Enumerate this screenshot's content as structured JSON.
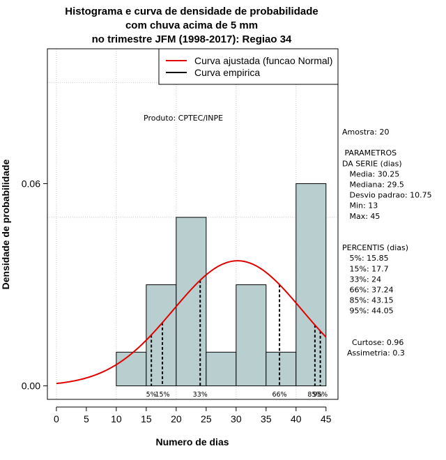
{
  "chart_data": {
    "type": "bar",
    "title": [
      "Histograma e curva de densidade de probabilidade",
      "com chuva acima de 5 mm",
      "no trimestre JFM (1998-2017): Regiao 34"
    ],
    "xlabel": "Numero de dias",
    "ylabel": "Densidade de probabilidade",
    "xlim": [
      -1.5,
      47
    ],
    "ylim": [
      -0.004,
      0.1
    ],
    "x_ticks": [
      "0",
      "5",
      "10",
      "15",
      "20",
      "25",
      "30",
      "35",
      "40",
      "45"
    ],
    "y_ticks": [
      "0.00",
      "0.06"
    ],
    "bins": [
      {
        "from": 10,
        "to": 15,
        "value": 0.01
      },
      {
        "from": 15,
        "to": 20,
        "value": 0.03
      },
      {
        "from": 20,
        "to": 25,
        "value": 0.05
      },
      {
        "from": 25,
        "to": 30,
        "value": 0.01
      },
      {
        "from": 30,
        "to": 35,
        "value": 0.03
      },
      {
        "from": 35,
        "to": 40,
        "value": 0.01
      },
      {
        "from": 40,
        "to": 45,
        "value": 0.06
      }
    ],
    "normal_curve": {
      "name": "Curva ajustada (funcao Normal)",
      "mean": 30.25,
      "sd": 10.75,
      "x_from": 0,
      "x_to": 45,
      "color": "#e00000"
    },
    "empirical_curve": {
      "name": "Curva empirica",
      "color": "#000000"
    },
    "percentiles": [
      {
        "label": "5%",
        "x": 15.85
      },
      {
        "label": "15%",
        "x": 17.7
      },
      {
        "label": "33%",
        "x": 24
      },
      {
        "label": "66%",
        "x": 37.24
      },
      {
        "label": "85%",
        "x": 43.15
      },
      {
        "label": "95%",
        "x": 44.05
      }
    ],
    "grid_x": [
      0,
      10,
      20,
      30,
      40
    ],
    "grid_y": [
      0.05,
      0.09
    ],
    "legend": "top-right",
    "bar_color": "#b9cfcf"
  },
  "annotations": {
    "produto": "Produto: CPTEC/INPE",
    "stats": [
      "Amostra: 20",
      "",
      " PARAMETROS",
      "DA SERIE (dias)",
      "   Media: 30.25",
      "   Mediana: 29.5",
      "   Desvio padrao: 10.75",
      "   Min: 13",
      "   Max: 45",
      "",
      "",
      "PERCENTIS (dias)",
      "   5%: 15.85",
      "   15%: 17.7",
      "   33%: 24",
      "   66%: 37.24",
      "   85%: 43.15",
      "   95%: 44.05",
      "",
      "",
      "    Curtose: 0.96",
      "  Assimetria: 0.3"
    ]
  }
}
